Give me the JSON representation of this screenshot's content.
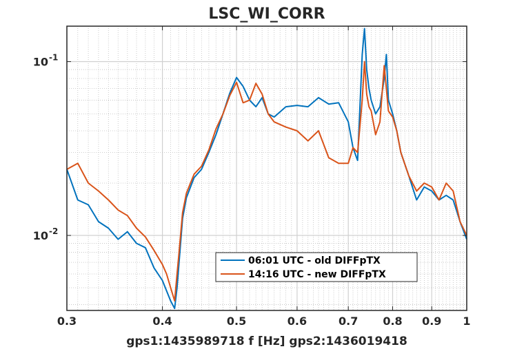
{
  "chart_data": {
    "type": "line",
    "title": "LSC_WI_CORR",
    "xlabel": "gps1:1435989718  f [Hz]  gps2:1436019418",
    "ylabel": "",
    "x_scale": "log",
    "y_scale": "log",
    "xlim": [
      0.3,
      1.0
    ],
    "ylim": [
      0.0037,
      0.16
    ],
    "grid": true,
    "legend_position": "bottom-right",
    "x_ticks": [
      {
        "value": 0.3,
        "label": "0.3"
      },
      {
        "value": 0.4,
        "label": "0.4"
      },
      {
        "value": 0.5,
        "label": "0.5"
      },
      {
        "value": 0.6,
        "label": "0.6"
      },
      {
        "value": 0.7,
        "label": "0.7"
      },
      {
        "value": 0.8,
        "label": "0.8"
      },
      {
        "value": 0.9,
        "label": "0.9"
      },
      {
        "value": 1.0,
        "label": "1"
      }
    ],
    "y_ticks": [
      {
        "value": 0.01,
        "label": "10",
        "exp": "-2"
      },
      {
        "value": 0.1,
        "label": "10",
        "exp": "-1"
      }
    ],
    "series": [
      {
        "name": "06:01 UTC - old DIFFpTX",
        "color": "#0072BD",
        "x": [
          0.3,
          0.31,
          0.32,
          0.33,
          0.34,
          0.35,
          0.36,
          0.37,
          0.38,
          0.39,
          0.4,
          0.405,
          0.41,
          0.415,
          0.418,
          0.42,
          0.425,
          0.43,
          0.44,
          0.45,
          0.46,
          0.47,
          0.48,
          0.49,
          0.5,
          0.51,
          0.52,
          0.53,
          0.54,
          0.55,
          0.56,
          0.58,
          0.6,
          0.62,
          0.64,
          0.66,
          0.68,
          0.7,
          0.71,
          0.72,
          0.73,
          0.735,
          0.74,
          0.745,
          0.75,
          0.76,
          0.77,
          0.78,
          0.785,
          0.79,
          0.8,
          0.81,
          0.82,
          0.84,
          0.86,
          0.88,
          0.9,
          0.92,
          0.94,
          0.96,
          0.98,
          1.0
        ],
        "y": [
          0.024,
          0.016,
          0.015,
          0.012,
          0.011,
          0.0095,
          0.0105,
          0.009,
          0.0085,
          0.0065,
          0.0055,
          0.0048,
          0.0042,
          0.0038,
          0.005,
          0.0065,
          0.0125,
          0.0165,
          0.0215,
          0.024,
          0.03,
          0.038,
          0.05,
          0.066,
          0.081,
          0.072,
          0.06,
          0.055,
          0.062,
          0.05,
          0.048,
          0.055,
          0.056,
          0.055,
          0.062,
          0.057,
          0.058,
          0.045,
          0.032,
          0.027,
          0.11,
          0.155,
          0.09,
          0.07,
          0.06,
          0.05,
          0.055,
          0.08,
          0.11,
          0.06,
          0.05,
          0.04,
          0.03,
          0.022,
          0.016,
          0.019,
          0.018,
          0.016,
          0.017,
          0.016,
          0.012,
          0.0095
        ]
      },
      {
        "name": "14:16 UTC - new DIFFpTX",
        "color": "#D95319",
        "x": [
          0.3,
          0.31,
          0.32,
          0.33,
          0.34,
          0.35,
          0.36,
          0.37,
          0.38,
          0.39,
          0.4,
          0.405,
          0.41,
          0.415,
          0.418,
          0.42,
          0.425,
          0.43,
          0.44,
          0.45,
          0.46,
          0.47,
          0.48,
          0.49,
          0.5,
          0.51,
          0.52,
          0.53,
          0.54,
          0.55,
          0.56,
          0.58,
          0.6,
          0.62,
          0.64,
          0.66,
          0.68,
          0.7,
          0.71,
          0.72,
          0.73,
          0.735,
          0.74,
          0.745,
          0.75,
          0.76,
          0.77,
          0.78,
          0.785,
          0.79,
          0.8,
          0.81,
          0.82,
          0.84,
          0.86,
          0.88,
          0.9,
          0.92,
          0.94,
          0.96,
          0.98,
          1.0
        ],
        "y": [
          0.024,
          0.026,
          0.02,
          0.018,
          0.016,
          0.014,
          0.013,
          0.011,
          0.0098,
          0.0082,
          0.0068,
          0.006,
          0.005,
          0.0042,
          0.006,
          0.0075,
          0.0135,
          0.0175,
          0.0225,
          0.025,
          0.031,
          0.041,
          0.05,
          0.064,
          0.076,
          0.058,
          0.06,
          0.075,
          0.065,
          0.05,
          0.045,
          0.042,
          0.04,
          0.035,
          0.04,
          0.028,
          0.026,
          0.026,
          0.032,
          0.03,
          0.06,
          0.1,
          0.065,
          0.055,
          0.052,
          0.038,
          0.045,
          0.095,
          0.07,
          0.052,
          0.048,
          0.04,
          0.03,
          0.022,
          0.018,
          0.02,
          0.019,
          0.016,
          0.02,
          0.018,
          0.012,
          0.01
        ]
      }
    ]
  }
}
